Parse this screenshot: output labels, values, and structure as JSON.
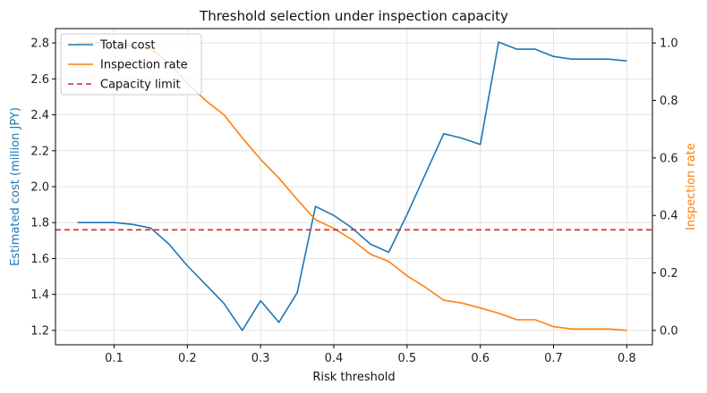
{
  "chart_data": {
    "type": "line",
    "title": "Threshold selection under inspection capacity",
    "xlabel": "Risk threshold",
    "ylabel_left": "Estimated cost (million JPY)",
    "ylabel_right": "Inspection rate",
    "xlim": [
      0.02,
      0.835
    ],
    "ylim_left": [
      1.12,
      2.88
    ],
    "ylim_right": [
      -0.05,
      1.05
    ],
    "x_ticks": [
      "0.1",
      "0.2",
      "0.3",
      "0.4",
      "0.5",
      "0.6",
      "0.7",
      "0.8"
    ],
    "y_ticks_left": [
      "1.2",
      "1.4",
      "1.6",
      "1.8",
      "2.0",
      "2.2",
      "2.4",
      "2.6",
      "2.8"
    ],
    "y_ticks_right": [
      "0.0",
      "0.2",
      "0.4",
      "0.6",
      "0.8",
      "1.0"
    ],
    "grid": true,
    "legend_position": "top-left",
    "x": [
      0.05,
      0.075,
      0.1,
      0.125,
      0.15,
      0.175,
      0.2,
      0.225,
      0.25,
      0.275,
      0.3,
      0.325,
      0.35,
      0.375,
      0.4,
      0.425,
      0.45,
      0.475,
      0.5,
      0.525,
      0.55,
      0.575,
      0.6,
      0.625,
      0.65,
      0.675,
      0.7,
      0.725,
      0.75,
      0.775,
      0.8
    ],
    "series": [
      {
        "name": "Total cost",
        "axis": "left",
        "color": "#1f77b4",
        "style": "solid",
        "values": [
          1.8,
          1.8,
          1.8,
          1.79,
          1.77,
          1.68,
          1.56,
          1.455,
          1.35,
          1.2,
          1.365,
          1.245,
          1.41,
          1.89,
          1.84,
          1.77,
          1.68,
          1.635,
          1.845,
          2.07,
          2.295,
          2.27,
          2.235,
          2.805,
          2.765,
          2.765,
          2.725,
          2.71,
          2.71,
          2.71,
          2.7
        ]
      },
      {
        "name": "Inspection rate",
        "axis": "right",
        "color": "#ff7f0e",
        "style": "solid",
        "values": [
          1.0,
          1.0,
          1.0,
          0.99,
          0.98,
          0.93,
          0.86,
          0.8,
          0.75,
          0.67,
          0.595,
          0.53,
          0.455,
          0.385,
          0.355,
          0.315,
          0.265,
          0.24,
          0.19,
          0.15,
          0.105,
          0.095,
          0.078,
          0.06,
          0.037,
          0.037,
          0.013,
          0.005,
          0.005,
          0.005,
          0.0
        ]
      },
      {
        "name": "Capacity limit",
        "axis": "right",
        "color": "#d62728",
        "style": "dashed",
        "constant": 0.35
      }
    ]
  }
}
